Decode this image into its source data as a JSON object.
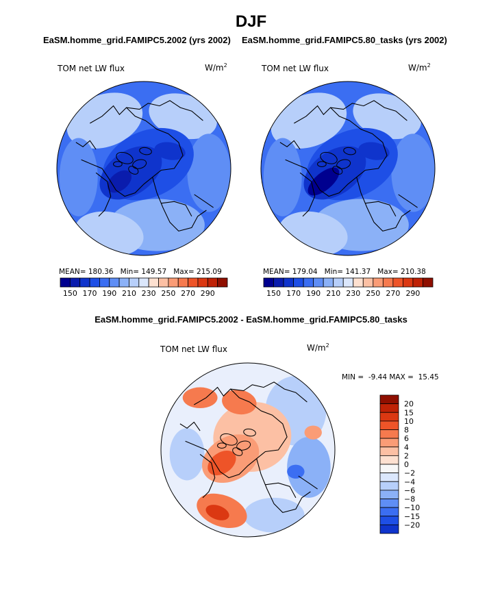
{
  "season": "DJF",
  "colors": {
    "blue_scale": [
      "#00008f",
      "#0a1cad",
      "#0f34cc",
      "#1e4fe6",
      "#3b6ef2",
      "#5f8ef5",
      "#8bb1f7",
      "#b7cffa",
      "#dbe7fc"
    ],
    "red_scale": [
      "#fde0d0",
      "#fcc0a4",
      "#fa9c76",
      "#f67a4e",
      "#ee5428",
      "#db3812",
      "#bf2206",
      "#8f0f00"
    ],
    "land_outline": "#000000",
    "neutral": "#f7f7f7"
  },
  "chart_data": [
    {
      "type": "heatmap",
      "projection": "north-polar-stereographic",
      "title": "EaSM.homme_grid.FAMIPC5.2002 (yrs 2002)",
      "variable_label": "TOM net LW flux",
      "units_label": "W/m",
      "units_exponent": "2",
      "stats": {
        "mean_label": "MEAN=",
        "mean": "180.36",
        "min_label": "Min=",
        "min": "149.57",
        "max_label": "Max=",
        "max": "215.09"
      },
      "colorbar": {
        "orientation": "horizontal",
        "levels": [
          145,
          150,
          160,
          170,
          180,
          190,
          200,
          210,
          220,
          230,
          240,
          250,
          260,
          270,
          280,
          290
        ],
        "tick_labels": [
          "150",
          "170",
          "190",
          "210",
          "230",
          "250",
          "270",
          "290"
        ],
        "colors": [
          "#00008f",
          "#0a1cad",
          "#0f34cc",
          "#1e4fe6",
          "#3b6ef2",
          "#5f8ef5",
          "#8bb1f7",
          "#b7cffa",
          "#dbe7fc",
          "#fde0d0",
          "#fcc0a4",
          "#fa9c76",
          "#f67a4e",
          "#ee5428",
          "#db3812",
          "#bf2206",
          "#8f0f00"
        ]
      }
    },
    {
      "type": "heatmap",
      "projection": "north-polar-stereographic",
      "title": "EaSM.homme_grid.FAMIPC5.80_tasks (yrs 2002)",
      "variable_label": "TOM net LW flux",
      "units_label": "W/m",
      "units_exponent": "2",
      "stats": {
        "mean_label": "MEAN=",
        "mean": "179.04",
        "min_label": "Min=",
        "min": "141.37",
        "max_label": "Max=",
        "max": "210.38"
      },
      "colorbar": {
        "orientation": "horizontal",
        "levels": [
          145,
          150,
          160,
          170,
          180,
          190,
          200,
          210,
          220,
          230,
          240,
          250,
          260,
          270,
          280,
          290
        ],
        "tick_labels": [
          "150",
          "170",
          "190",
          "210",
          "230",
          "250",
          "270",
          "290"
        ],
        "colors": [
          "#00008f",
          "#0a1cad",
          "#0f34cc",
          "#1e4fe6",
          "#3b6ef2",
          "#5f8ef5",
          "#8bb1f7",
          "#b7cffa",
          "#dbe7fc",
          "#fde0d0",
          "#fcc0a4",
          "#fa9c76",
          "#f67a4e",
          "#ee5428",
          "#db3812",
          "#bf2206",
          "#8f0f00"
        ]
      }
    },
    {
      "type": "heatmap",
      "projection": "north-polar-stereographic",
      "title": "EaSM.homme_grid.FAMIPC5.2002 - EaSM.homme_grid.FAMIPC5.80_tasks",
      "variable_label": "TOM net LW flux",
      "units_label": "W/m",
      "units_exponent": "2",
      "stats": {
        "min_label": "MIN =",
        "min": "-9.44",
        "max_label": "MAX =",
        "max": "15.45"
      },
      "colorbar": {
        "orientation": "vertical",
        "tick_labels_top_to_bottom": [
          "20",
          "15",
          "10",
          "8",
          "6",
          "4",
          "2",
          "0",
          "−2",
          "−4",
          "−6",
          "−8",
          "−10",
          "−15",
          "−20"
        ],
        "colors_top_to_bottom": [
          "#8f0f00",
          "#bf2206",
          "#db3812",
          "#ee5428",
          "#f67a4e",
          "#fa9c76",
          "#fcc0a4",
          "#fde0d0",
          "#f7f7f7",
          "#dbe7fc",
          "#b7cffa",
          "#8bb1f7",
          "#5f8ef5",
          "#3b6ef2",
          "#1e4fe6",
          "#0f34cc"
        ]
      }
    }
  ]
}
